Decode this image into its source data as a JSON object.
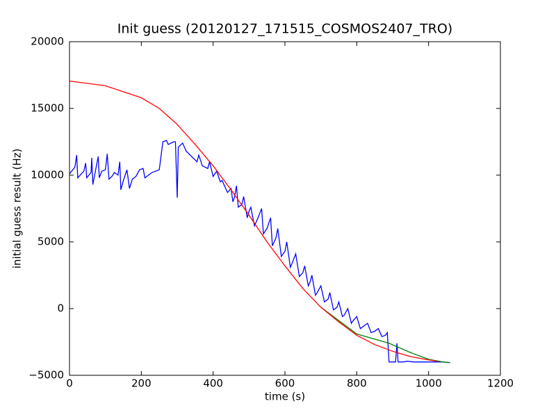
{
  "chart_data": {
    "type": "line",
    "title": "Init guess (20120127_171515_COSMOS2407_TRO)",
    "x_label": "time (s)",
    "y_label": "initial guess result (Hz)",
    "xlim": [
      0,
      1200
    ],
    "xticks": [
      0,
      200,
      400,
      600,
      800,
      1000,
      1200
    ],
    "ylim": [
      -5000,
      20000
    ],
    "yticks": [
      {
        "value": -5000,
        "label": "−5000"
      },
      0,
      5000,
      10000,
      15000,
      20000
    ],
    "grid": false,
    "series": [
      {
        "color": "#0000ff",
        "x": [
          0,
          15,
          20,
          23,
          40,
          45,
          48,
          60,
          62,
          65,
          75,
          80,
          83,
          90,
          100,
          105,
          110,
          118,
          125,
          135,
          140,
          143,
          150,
          155,
          160,
          167,
          175,
          185,
          195,
          205,
          210,
          230,
          250,
          260,
          270,
          275,
          290,
          295,
          300,
          303,
          315,
          325,
          340,
          355,
          360,
          370,
          385,
          390,
          400,
          410,
          420,
          425,
          440,
          450,
          455,
          460,
          465,
          470,
          480,
          485,
          495,
          500,
          505,
          515,
          525,
          535,
          540,
          550,
          560,
          565,
          575,
          580,
          590,
          600,
          605,
          615,
          620,
          630,
          640,
          650,
          655,
          665,
          670,
          675,
          685,
          690,
          700,
          710,
          720,
          725,
          735,
          745,
          750,
          760,
          765,
          775,
          785,
          790,
          800,
          810,
          820,
          830,
          840,
          850,
          860,
          870,
          880,
          885,
          890,
          908,
          912,
          915,
          930,
          940,
          960,
          1000,
          1040,
          1060
        ],
        "values": [
          10100,
          10600,
          11500,
          9800,
          10300,
          10900,
          9800,
          10200,
          11300,
          9300,
          10700,
          11400,
          9800,
          10300,
          10400,
          11600,
          9700,
          9900,
          10200,
          10000,
          11000,
          8900,
          9600,
          10000,
          10400,
          9000,
          9700,
          9900,
          10400,
          10500,
          9800,
          10200,
          10400,
          12500,
          12600,
          12300,
          12500,
          12500,
          8300,
          12100,
          12400,
          11800,
          11400,
          11000,
          11500,
          10700,
          10500,
          11000,
          9900,
          10300,
          9500,
          9600,
          8700,
          9000,
          8000,
          8400,
          9200,
          7600,
          7800,
          8400,
          6800,
          7300,
          7600,
          6200,
          6800,
          7500,
          5600,
          6000,
          6800,
          4700,
          5300,
          6000,
          3900,
          4300,
          5000,
          3100,
          3400,
          4100,
          2400,
          2700,
          3200,
          1700,
          2000,
          2500,
          1000,
          1200,
          1700,
          500,
          700,
          1200,
          -100,
          100,
          500,
          -600,
          -500,
          0,
          -1100,
          -900,
          -600,
          -1500,
          -1300,
          -1100,
          -1800,
          -1700,
          -1500,
          -2100,
          -2000,
          -1800,
          -4000,
          -4000,
          -2600,
          -4000,
          -4000,
          -3950,
          -4000,
          -4000,
          -4000,
          -4050
        ]
      },
      {
        "color": "#008000",
        "x": [
          700,
          800,
          890,
          950,
          1000,
          1040,
          1060
        ],
        "values": [
          100,
          -1900,
          -2600,
          -3300,
          -3800,
          -4000,
          -4050
        ]
      },
      {
        "color": "#ff0000",
        "x": [
          0,
          100,
          200,
          250,
          300,
          350,
          400,
          450,
          500,
          550,
          600,
          650,
          700,
          750,
          800,
          850,
          900,
          950,
          1000,
          1025
        ],
        "values": [
          17050,
          16700,
          15800,
          15000,
          13800,
          12300,
          10700,
          8900,
          7000,
          5000,
          3200,
          1500,
          100,
          -1000,
          -2000,
          -2700,
          -3200,
          -3600,
          -3850,
          -3950
        ]
      }
    ]
  }
}
